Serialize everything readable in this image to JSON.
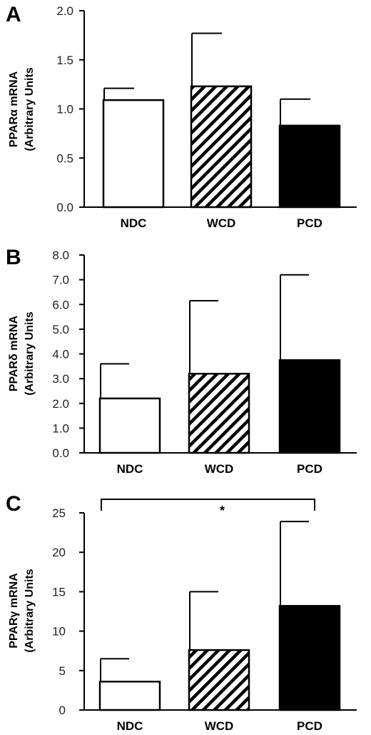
{
  "chart_data": [
    {
      "panel": "A",
      "type": "bar",
      "ylabel_line1": "PPARα mRNA",
      "ylabel_line2": "(Arbitrary Units",
      "categories": [
        "NDC",
        "WCD",
        "PCD"
      ],
      "values": [
        1.09,
        1.23,
        0.83
      ],
      "errors": [
        0.12,
        0.54,
        0.27
      ],
      "fills": [
        "white",
        "hatch",
        "black"
      ],
      "ylim": [
        0,
        2.0
      ],
      "yticks": [
        "0.0",
        "0.5",
        "1.0",
        "1.5",
        "2.0"
      ]
    },
    {
      "panel": "B",
      "type": "bar",
      "ylabel_line1": "PPARδ mRNA",
      "ylabel_line2": "(Arbitrary Units",
      "categories": [
        "NDC",
        "WCD",
        "PCD"
      ],
      "values": [
        2.2,
        3.2,
        3.75
      ],
      "errors": [
        1.4,
        2.95,
        3.45
      ],
      "fills": [
        "white",
        "hatch",
        "black"
      ],
      "ylim": [
        0,
        8.0
      ],
      "yticks": [
        "0.0",
        "1.0",
        "2.0",
        "3.0",
        "4.0",
        "5.0",
        "6.0",
        "7.0",
        "8.0"
      ]
    },
    {
      "panel": "C",
      "type": "bar",
      "ylabel_line1": "PPARγ mRNA",
      "ylabel_line2": "(Arbitrary Units",
      "categories": [
        "NDC",
        "WCD",
        "PCD"
      ],
      "values": [
        3.6,
        7.6,
        13.2
      ],
      "errors": [
        2.9,
        7.4,
        10.7
      ],
      "fills": [
        "white",
        "hatch",
        "black"
      ],
      "ylim": [
        0,
        25
      ],
      "yticks": [
        "0",
        "5",
        "10",
        "15",
        "20",
        "25"
      ],
      "significance": {
        "from": "NDC",
        "to": "PCD",
        "label": "*"
      }
    }
  ]
}
